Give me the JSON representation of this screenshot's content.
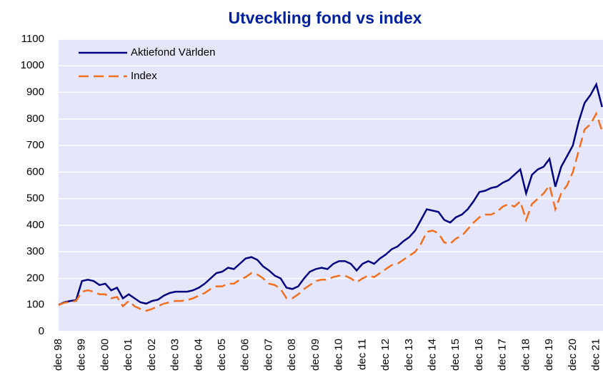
{
  "chart_data": {
    "type": "line",
    "title": "Utveckling fond vs index",
    "categories": [
      "dec 98",
      null,
      null,
      null,
      "dec 99",
      null,
      null,
      null,
      "dec 00",
      null,
      null,
      null,
      "dec 01",
      null,
      null,
      null,
      "dec 02",
      null,
      null,
      null,
      "dec 03",
      null,
      null,
      null,
      "dec 04",
      null,
      null,
      null,
      "dec 05",
      null,
      null,
      null,
      "dec 06",
      null,
      null,
      null,
      "dec 07",
      null,
      null,
      null,
      "dec 08",
      null,
      null,
      null,
      "dec 09",
      null,
      null,
      null,
      "dec 10",
      null,
      null,
      null,
      "dec 11",
      null,
      null,
      null,
      "dec 12",
      null,
      null,
      null,
      "dec 13",
      null,
      null,
      null,
      "dec 14",
      null,
      null,
      null,
      "dec 15",
      null,
      null,
      null,
      "dec 16",
      null,
      null,
      null,
      "dec 17",
      null,
      null,
      null,
      "dec 18",
      null,
      null,
      null,
      "dec 19",
      null,
      null,
      null,
      "dec 20",
      null,
      null,
      null,
      "dec 21",
      null
    ],
    "series": [
      {
        "name": "Aktiefond Världen",
        "color": "#000080",
        "dashed": false,
        "values": [
          100,
          110,
          115,
          118,
          190,
          195,
          190,
          175,
          180,
          155,
          165,
          125,
          140,
          125,
          110,
          105,
          115,
          120,
          135,
          145,
          150,
          150,
          150,
          155,
          165,
          180,
          200,
          220,
          225,
          240,
          235,
          255,
          275,
          280,
          270,
          245,
          230,
          210,
          200,
          165,
          160,
          170,
          200,
          225,
          235,
          240,
          235,
          255,
          265,
          265,
          255,
          230,
          255,
          265,
          255,
          275,
          290,
          310,
          320,
          340,
          355,
          380,
          420,
          460,
          455,
          450,
          420,
          410,
          430,
          440,
          460,
          490,
          525,
          530,
          540,
          545,
          560,
          570,
          590,
          610,
          520,
          590,
          610,
          620,
          650,
          545,
          620,
          660,
          700,
          790,
          860,
          890,
          930,
          845
        ]
      },
      {
        "name": "Index",
        "color": "#f07020",
        "dashed": true,
        "values": [
          100,
          108,
          112,
          115,
          150,
          155,
          150,
          140,
          140,
          125,
          130,
          95,
          115,
          95,
          85,
          78,
          85,
          95,
          105,
          110,
          115,
          115,
          118,
          125,
          135,
          145,
          160,
          170,
          170,
          180,
          180,
          195,
          205,
          220,
          215,
          200,
          180,
          175,
          160,
          125,
          125,
          140,
          160,
          175,
          190,
          195,
          195,
          205,
          210,
          210,
          200,
          185,
          200,
          210,
          205,
          220,
          235,
          250,
          255,
          270,
          285,
          300,
          330,
          375,
          380,
          370,
          335,
          330,
          350,
          360,
          385,
          410,
          430,
          440,
          440,
          450,
          470,
          480,
          470,
          490,
          420,
          480,
          500,
          520,
          550,
          460,
          520,
          550,
          600,
          680,
          760,
          780,
          820,
          755
        ]
      }
    ],
    "ylim": [
      0,
      1100
    ],
    "yticks": [
      0,
      100,
      200,
      300,
      400,
      500,
      600,
      700,
      800,
      900,
      1000,
      1100
    ],
    "grid": true,
    "legend": "upper left",
    "background": "#e6e6fa"
  }
}
